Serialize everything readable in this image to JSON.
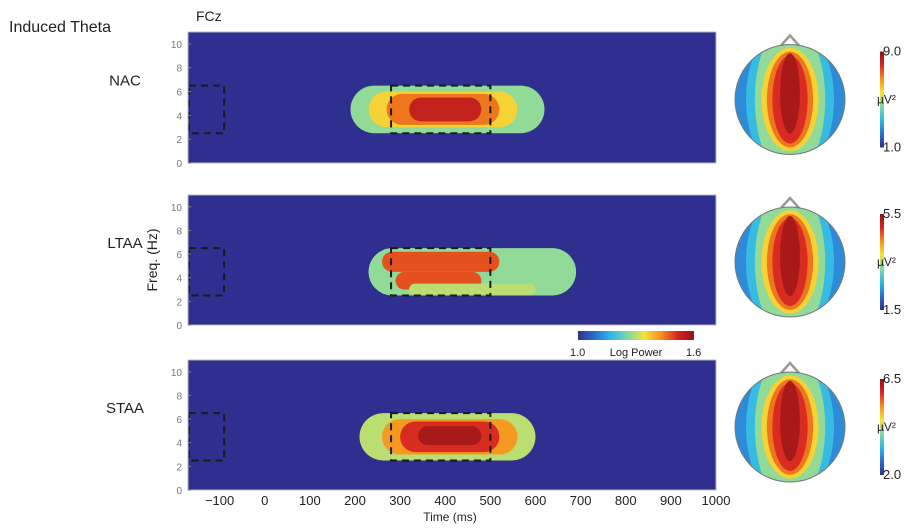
{
  "figure": {
    "title": "Induced Theta",
    "electrode": "FCz",
    "ylabel": "Freq. (Hz)",
    "xlabel": "Time (ms)",
    "unit": "µV²",
    "colormap": {
      "stops": [
        "#2f2f8f",
        "#2a6fd0",
        "#2fb8e8",
        "#7fd8a8",
        "#f5e33a",
        "#f5921e",
        "#d8261f",
        "#8e1414"
      ],
      "min_label": "1.0",
      "title": "Log Power",
      "max_label": "1.6"
    }
  },
  "chart_data": [
    {
      "type": "heatmap",
      "label": "NAC",
      "x_ticks": [
        "−100",
        "0",
        "100",
        "200",
        "300",
        "400",
        "500",
        "600",
        "700",
        "800",
        "900",
        "1000"
      ],
      "y_ticks": [
        "0",
        "2",
        "4",
        "6",
        "8",
        "10"
      ],
      "xlim": [
        -170,
        1000
      ],
      "ylim": [
        0,
        11
      ],
      "x_unit": "ms",
      "y_unit": "Hz",
      "background_level": 0.0,
      "baseline_window": {
        "x": [
          -170,
          -90
        ],
        "y": [
          2.5,
          6.5
        ]
      },
      "analysis_window": {
        "x": [
          280,
          500
        ],
        "y": [
          2.5,
          6.5
        ]
      },
      "blobs": [
        {
          "x": [
            190,
            620
          ],
          "y": [
            2.5,
            6.5
          ],
          "level": 0.45
        },
        {
          "x": [
            230,
            560
          ],
          "y": [
            3.0,
            6.0
          ],
          "level": 0.6
        },
        {
          "x": [
            270,
            520
          ],
          "y": [
            3.2,
            5.8
          ],
          "level": 0.75
        },
        {
          "x": [
            320,
            480
          ],
          "y": [
            3.5,
            5.5
          ],
          "level": 0.9
        }
      ],
      "topomap_scale": {
        "max": "9.0",
        "min": "1.0"
      }
    },
    {
      "type": "heatmap",
      "label": "LTAA",
      "x_ticks": [
        "−100",
        "0",
        "100",
        "200",
        "300",
        "400",
        "500",
        "600",
        "700",
        "800",
        "900",
        "1000"
      ],
      "y_ticks": [
        "0",
        "2",
        "4",
        "6",
        "8",
        "10"
      ],
      "xlim": [
        -170,
        1000
      ],
      "ylim": [
        0,
        11
      ],
      "x_unit": "ms",
      "y_unit": "Hz",
      "background_level": 0.0,
      "baseline_window": {
        "x": [
          -170,
          -90
        ],
        "y": [
          2.5,
          6.5
        ]
      },
      "analysis_window": {
        "x": [
          280,
          500
        ],
        "y": [
          2.5,
          6.5
        ]
      },
      "blobs": [
        {
          "x": [
            230,
            690
          ],
          "y": [
            2.5,
            6.5
          ],
          "level": 0.45
        },
        {
          "x": [
            260,
            520
          ],
          "y": [
            4.5,
            6.2
          ],
          "level": 0.8
        },
        {
          "x": [
            290,
            480
          ],
          "y": [
            3.0,
            4.5
          ],
          "level": 0.8
        },
        {
          "x": [
            320,
            600
          ],
          "y": [
            2.5,
            3.5
          ],
          "level": 0.5
        }
      ],
      "topomap_scale": {
        "max": "5.5",
        "min": "1.5"
      }
    },
    {
      "type": "heatmap",
      "label": "STAA",
      "x_ticks": [
        "−100",
        "0",
        "100",
        "200",
        "300",
        "400",
        "500",
        "600",
        "700",
        "800",
        "900",
        "1000"
      ],
      "y_ticks": [
        "0",
        "2",
        "4",
        "6",
        "8",
        "10"
      ],
      "xlim": [
        -170,
        1000
      ],
      "ylim": [
        0,
        11
      ],
      "x_unit": "ms",
      "y_unit": "Hz",
      "background_level": 0.0,
      "baseline_window": {
        "x": [
          -170,
          -90
        ],
        "y": [
          2.5,
          6.5
        ]
      },
      "analysis_window": {
        "x": [
          280,
          500
        ],
        "y": [
          2.5,
          6.5
        ]
      },
      "blobs": [
        {
          "x": [
            210,
            600
          ],
          "y": [
            2.5,
            6.5
          ],
          "level": 0.5
        },
        {
          "x": [
            260,
            560
          ],
          "y": [
            3.0,
            6.0
          ],
          "level": 0.7
        },
        {
          "x": [
            300,
            520
          ],
          "y": [
            3.2,
            5.8
          ],
          "level": 0.85
        },
        {
          "x": [
            340,
            480
          ],
          "y": [
            3.8,
            5.4
          ],
          "level": 0.95
        }
      ],
      "topomap_scale": {
        "max": "6.5",
        "min": "2.0"
      }
    }
  ]
}
